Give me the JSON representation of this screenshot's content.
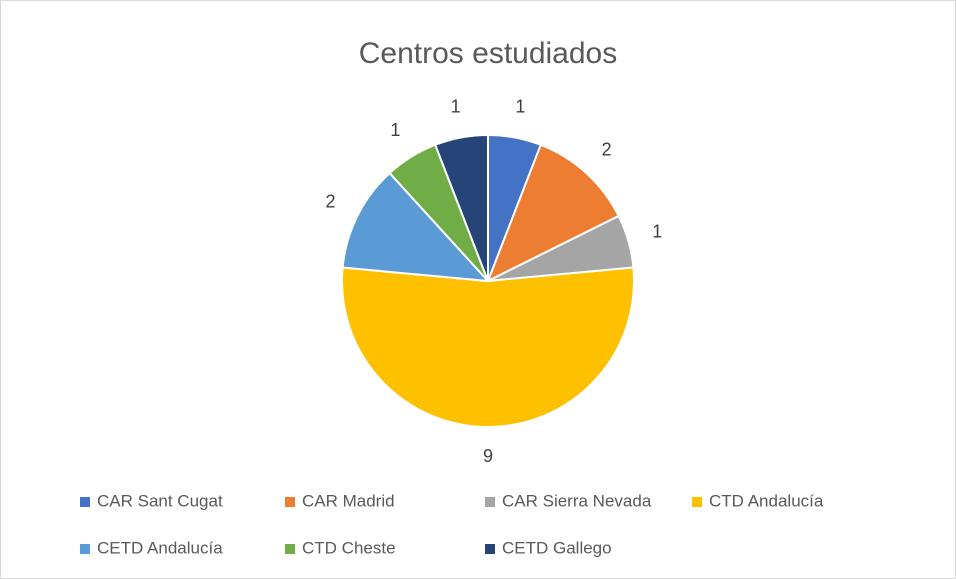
{
  "chart_data": {
    "type": "pie",
    "title": "Centros estudiados",
    "categories": [
      "CAR Sant Cugat",
      "CAR Madrid",
      "CAR Sierra Nevada",
      "CTD Andalucía",
      "CETD Andalucía",
      "CTD Cheste",
      "CETD Gallego"
    ],
    "values": [
      1,
      2,
      1,
      9,
      2,
      1,
      1
    ],
    "colors": [
      "#4472c4",
      "#ed7d31",
      "#a5a5a5",
      "#ffc000",
      "#5b9bd5",
      "#70ad47",
      "#264478"
    ],
    "legend": "bottom"
  }
}
